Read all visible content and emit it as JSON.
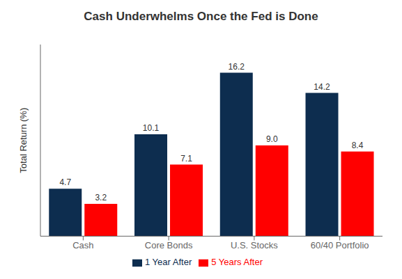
{
  "chart_data": {
    "type": "bar",
    "title": "Cash Underwhelms Once the Fed is Done",
    "categories": [
      "Cash",
      "Core Bonds",
      "U.S. Stocks",
      "60/40 Portfolio"
    ],
    "series": [
      {
        "name": "1 Year After",
        "color": "#0d2d4f",
        "values": [
          4.7,
          10.1,
          16.2,
          14.2
        ],
        "value_labels": [
          "4.7",
          "10.1",
          "16.2",
          "14.2"
        ]
      },
      {
        "name": "5 Years After",
        "color": "#ff0000",
        "values": [
          3.2,
          7.1,
          9.0,
          8.4
        ],
        "value_labels": [
          "3.2",
          "7.1",
          "9.0",
          "8.4"
        ]
      }
    ],
    "ylabel": "Total Return (%)",
    "ylim": [
      0,
      19
    ],
    "yticks": [],
    "tick_labels": "x",
    "data_labels": true,
    "grid": false,
    "legend": "bottom"
  }
}
